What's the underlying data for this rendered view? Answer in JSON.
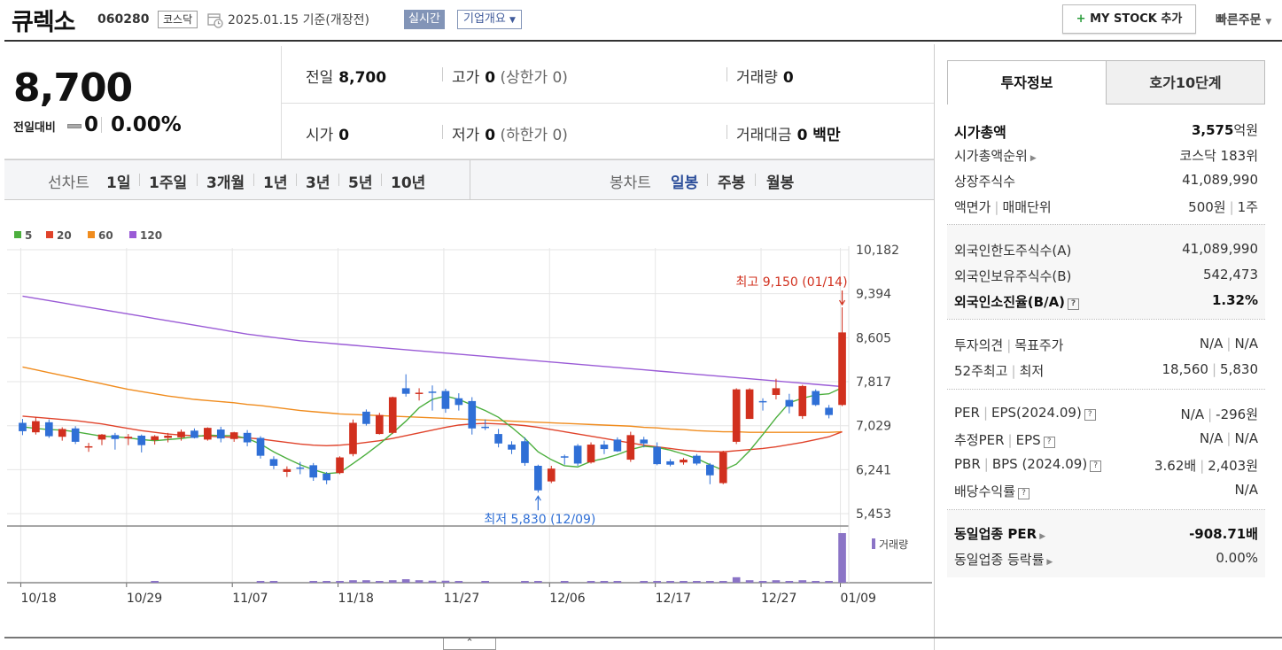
{
  "header": {
    "company": "큐렉소",
    "code": "060280",
    "market": "코스닥",
    "date_text": "2025.01.15  기준(개장전)",
    "realtime_label": "실시간",
    "corp_overview_label": "기업개요",
    "mystock_plus": "+",
    "mystock_label": "MY STOCK 추가",
    "quick_order_label": "빠른주문"
  },
  "price": {
    "current": "8,700",
    "change_label": "전일대비",
    "change_value": "0",
    "change_pct": "0.00%",
    "stats": {
      "prev_close": {
        "label": "전일",
        "value": "8,700"
      },
      "high": {
        "label": "고가",
        "value": "0",
        "sub": "(상한가 0)"
      },
      "volume": {
        "label": "거래량",
        "value": "0"
      },
      "open": {
        "label": "시가",
        "value": "0"
      },
      "low": {
        "label": "저가",
        "value": "0",
        "sub": "(하한가 0)"
      },
      "trade_amount": {
        "label": "거래대금",
        "value": "0 백만"
      }
    }
  },
  "toolbar": {
    "line_chart_label": "선차트",
    "line_periods": [
      "1일",
      "1주일",
      "3개월",
      "1년",
      "3년",
      "5년",
      "10년"
    ],
    "candle_chart_label": "봉차트",
    "candle_periods": [
      "일봉",
      "주봉",
      "월봉"
    ],
    "candle_active": "일봉"
  },
  "chart_data": {
    "type": "candlestick",
    "legend": [
      {
        "name": "5",
        "color": "#4caf3e"
      },
      {
        "name": "20",
        "color": "#e0432b"
      },
      {
        "name": "60",
        "color": "#f08c1e"
      },
      {
        "name": "120",
        "color": "#9a5bd6"
      }
    ],
    "y_ticks": [
      "10,182",
      "9,394",
      "8,605",
      "7,817",
      "7,029",
      "6,241",
      "5,453"
    ],
    "ylim": [
      5453,
      10182
    ],
    "x_ticks": [
      "10/18",
      "10/29",
      "11/07",
      "11/18",
      "11/27",
      "12/06",
      "12/17",
      "12/27",
      "01/09"
    ],
    "high_annotation": "최고 9,150 (01/14)",
    "low_annotation": "최저 5,830 (12/09)",
    "volume_label": "거래량",
    "candles": [
      {
        "o": 7080,
        "h": 7150,
        "l": 6860,
        "c": 6930
      },
      {
        "o": 6910,
        "h": 7180,
        "l": 6870,
        "c": 7110
      },
      {
        "o": 7090,
        "h": 7140,
        "l": 6810,
        "c": 6840
      },
      {
        "o": 6830,
        "h": 7000,
        "l": 6760,
        "c": 6970
      },
      {
        "o": 6980,
        "h": 7020,
        "l": 6700,
        "c": 6740
      },
      {
        "o": 6660,
        "h": 6720,
        "l": 6560,
        "c": 6660
      },
      {
        "o": 6780,
        "h": 6880,
        "l": 6680,
        "c": 6870
      },
      {
        "o": 6860,
        "h": 6900,
        "l": 6600,
        "c": 6790
      },
      {
        "o": 6800,
        "h": 6880,
        "l": 6680,
        "c": 6830
      },
      {
        "o": 6850,
        "h": 6870,
        "l": 6550,
        "c": 6680
      },
      {
        "o": 6770,
        "h": 6860,
        "l": 6690,
        "c": 6840
      },
      {
        "o": 6810,
        "h": 6900,
        "l": 6730,
        "c": 6850
      },
      {
        "o": 6820,
        "h": 6960,
        "l": 6760,
        "c": 6920
      },
      {
        "o": 6940,
        "h": 6980,
        "l": 6800,
        "c": 6810
      },
      {
        "o": 6780,
        "h": 7000,
        "l": 6760,
        "c": 6990
      },
      {
        "o": 6960,
        "h": 7010,
        "l": 6730,
        "c": 6800
      },
      {
        "o": 6790,
        "h": 6920,
        "l": 6740,
        "c": 6910
      },
      {
        "o": 6900,
        "h": 6950,
        "l": 6660,
        "c": 6730
      },
      {
        "o": 6810,
        "h": 6840,
        "l": 6440,
        "c": 6490
      },
      {
        "o": 6430,
        "h": 6480,
        "l": 6250,
        "c": 6310
      },
      {
        "o": 6200,
        "h": 6300,
        "l": 6110,
        "c": 6250
      },
      {
        "o": 6280,
        "h": 6380,
        "l": 6160,
        "c": 6260
      },
      {
        "o": 6320,
        "h": 6360,
        "l": 6040,
        "c": 6100
      },
      {
        "o": 6170,
        "h": 6200,
        "l": 5980,
        "c": 6050
      },
      {
        "o": 6180,
        "h": 6480,
        "l": 6160,
        "c": 6460
      },
      {
        "o": 6520,
        "h": 7140,
        "l": 6480,
        "c": 7080
      },
      {
        "o": 7280,
        "h": 7320,
        "l": 7030,
        "c": 7060
      },
      {
        "o": 6880,
        "h": 7260,
        "l": 6870,
        "c": 7220
      },
      {
        "o": 6900,
        "h": 7550,
        "l": 6880,
        "c": 7540
      },
      {
        "o": 7700,
        "h": 7950,
        "l": 7550,
        "c": 7600
      },
      {
        "o": 7620,
        "h": 7700,
        "l": 7480,
        "c": 7620
      },
      {
        "o": 7640,
        "h": 7750,
        "l": 7300,
        "c": 7630
      },
      {
        "o": 7650,
        "h": 7690,
        "l": 7260,
        "c": 7330
      },
      {
        "o": 7520,
        "h": 7610,
        "l": 7300,
        "c": 7400
      },
      {
        "o": 7470,
        "h": 7540,
        "l": 6870,
        "c": 6980
      },
      {
        "o": 7010,
        "h": 7140,
        "l": 6950,
        "c": 7000
      },
      {
        "o": 6880,
        "h": 6970,
        "l": 6640,
        "c": 6710
      },
      {
        "o": 6690,
        "h": 6750,
        "l": 6520,
        "c": 6600
      },
      {
        "o": 6750,
        "h": 6820,
        "l": 6310,
        "c": 6360
      },
      {
        "o": 6310,
        "h": 6330,
        "l": 5830,
        "c": 5870
      },
      {
        "o": 6030,
        "h": 6310,
        "l": 6000,
        "c": 6260
      },
      {
        "o": 6480,
        "h": 6510,
        "l": 6330,
        "c": 6460
      },
      {
        "o": 6670,
        "h": 6700,
        "l": 6310,
        "c": 6350
      },
      {
        "o": 6370,
        "h": 6730,
        "l": 6350,
        "c": 6690
      },
      {
        "o": 6690,
        "h": 6760,
        "l": 6520,
        "c": 6610
      },
      {
        "o": 6780,
        "h": 6820,
        "l": 6560,
        "c": 6570
      },
      {
        "o": 6420,
        "h": 6920,
        "l": 6380,
        "c": 6860
      },
      {
        "o": 6780,
        "h": 6830,
        "l": 6640,
        "c": 6710
      },
      {
        "o": 6650,
        "h": 6730,
        "l": 6320,
        "c": 6340
      },
      {
        "o": 6390,
        "h": 6430,
        "l": 6300,
        "c": 6330
      },
      {
        "o": 6370,
        "h": 6450,
        "l": 6330,
        "c": 6420
      },
      {
        "o": 6490,
        "h": 6520,
        "l": 6320,
        "c": 6350
      },
      {
        "o": 6330,
        "h": 6360,
        "l": 5980,
        "c": 6140
      },
      {
        "o": 6000,
        "h": 6580,
        "l": 5980,
        "c": 6550
      },
      {
        "o": 6740,
        "h": 7700,
        "l": 6700,
        "c": 7680
      },
      {
        "o": 7150,
        "h": 7700,
        "l": 7150,
        "c": 7680
      },
      {
        "o": 7470,
        "h": 7520,
        "l": 7300,
        "c": 7450
      },
      {
        "o": 7580,
        "h": 7870,
        "l": 7500,
        "c": 7700
      },
      {
        "o": 7490,
        "h": 7600,
        "l": 7250,
        "c": 7370
      },
      {
        "o": 7200,
        "h": 7760,
        "l": 7150,
        "c": 7740
      },
      {
        "o": 7650,
        "h": 7680,
        "l": 7380,
        "c": 7400
      },
      {
        "o": 7350,
        "h": 7400,
        "l": 7160,
        "c": 7220
      },
      {
        "o": 7400,
        "h": 9150,
        "l": 7380,
        "c": 8700
      }
    ],
    "ma5": [
      7010,
      6980,
      6960,
      6950,
      6920,
      6880,
      6840,
      6830,
      6810,
      6780,
      6760,
      6780,
      6800,
      6830,
      6860,
      6850,
      6850,
      6800,
      6700,
      6560,
      6440,
      6330,
      6240,
      6170,
      6190,
      6350,
      6520,
      6700,
      6900,
      7110,
      7350,
      7500,
      7560,
      7500,
      7400,
      7300,
      7180,
      7000,
      6800,
      6560,
      6420,
      6310,
      6290,
      6390,
      6440,
      6510,
      6600,
      6660,
      6640,
      6590,
      6520,
      6440,
      6330,
      6230,
      6340,
      6580,
      6870,
      7170,
      7440,
      7520,
      7580,
      7600,
      7710
    ],
    "ma20": [
      7200,
      7180,
      7160,
      7140,
      7120,
      7090,
      7060,
      7020,
      6980,
      6940,
      6910,
      6880,
      6860,
      6850,
      6840,
      6830,
      6820,
      6810,
      6790,
      6760,
      6730,
      6700,
      6680,
      6670,
      6680,
      6700,
      6730,
      6760,
      6800,
      6850,
      6900,
      6950,
      7000,
      7040,
      7060,
      7070,
      7060,
      7050,
      7030,
      7000,
      6960,
      6920,
      6880,
      6840,
      6800,
      6760,
      6720,
      6680,
      6650,
      6620,
      6590,
      6570,
      6560,
      6560,
      6580,
      6600,
      6620,
      6650,
      6690,
      6730,
      6780,
      6830,
      6920
    ],
    "ma60": [
      8080,
      8030,
      7980,
      7930,
      7880,
      7830,
      7780,
      7730,
      7680,
      7640,
      7600,
      7560,
      7530,
      7500,
      7480,
      7460,
      7440,
      7410,
      7390,
      7360,
      7330,
      7300,
      7280,
      7260,
      7240,
      7230,
      7220,
      7210,
      7200,
      7190,
      7180,
      7170,
      7160,
      7150,
      7140,
      7130,
      7120,
      7110,
      7100,
      7090,
      7080,
      7070,
      7060,
      7050,
      7040,
      7030,
      7020,
      7000,
      6990,
      6970,
      6960,
      6940,
      6930,
      6920,
      6920,
      6910,
      6910,
      6910,
      6910,
      6910,
      6910,
      6910,
      6920
    ],
    "ma120": [
      9350,
      9310,
      9270,
      9230,
      9190,
      9150,
      9110,
      9070,
      9030,
      8990,
      8950,
      8910,
      8870,
      8830,
      8790,
      8750,
      8710,
      8670,
      8640,
      8610,
      8580,
      8550,
      8530,
      8510,
      8490,
      8470,
      8450,
      8430,
      8410,
      8390,
      8370,
      8350,
      8330,
      8310,
      8290,
      8270,
      8250,
      8230,
      8210,
      8190,
      8170,
      8150,
      8130,
      8110,
      8090,
      8070,
      8050,
      8030,
      8010,
      7990,
      7970,
      7950,
      7930,
      7910,
      7890,
      7870,
      7850,
      7830,
      7810,
      7790,
      7770,
      7750,
      7730
    ],
    "volume": [
      0,
      0,
      0,
      0,
      0,
      0,
      0,
      0,
      0,
      0,
      0.02,
      0,
      0,
      0,
      0,
      0,
      0,
      0,
      0.03,
      0.03,
      0,
      0,
      0.03,
      0.03,
      0.03,
      0.05,
      0.05,
      0.03,
      0.05,
      0.07,
      0.05,
      0.04,
      0.04,
      0.03,
      0,
      0.03,
      0,
      0,
      0.03,
      0.03,
      0,
      0.03,
      0,
      0.02,
      0.02,
      0.02,
      0,
      0.02,
      0.02,
      0.03,
      0.02,
      0.02,
      0.02,
      0.03,
      0.11,
      0.05,
      0.03,
      0.05,
      0.03,
      0.05,
      0.03,
      0.02,
      1.0
    ]
  },
  "info": {
    "tab_active": "투자정보",
    "tab_inactive": "호가10단계",
    "sec1": [
      {
        "label": "시가총액",
        "value_strong": "3,575",
        "value_unit": "억원"
      },
      {
        "label": "시가총액순위",
        "value": "코스닥 183위"
      },
      {
        "label": "상장주식수",
        "value": "41,089,990"
      },
      {
        "label": "액면가",
        "label2": "매매단위",
        "value": "500원",
        "value2": "1주"
      }
    ],
    "sec2": [
      {
        "label": "외국인한도주식수(A)",
        "value": "41,089,990"
      },
      {
        "label": "외국인보유주식수(B)",
        "value": "542,473"
      },
      {
        "label": "외국인소진율(B/A)",
        "value": "1.32%"
      }
    ],
    "sec3": [
      {
        "label": "투자의견",
        "label2": "목표주가",
        "value": "N/A",
        "value2": "N/A"
      },
      {
        "label": "52주최고",
        "label2": "최저",
        "value": "18,560",
        "value2": "5,830"
      }
    ],
    "sec4": [
      {
        "label": "PER",
        "label2": "EPS(2024.09)",
        "value": "N/A",
        "value2": "-296원"
      },
      {
        "label": "추정PER",
        "label2": "EPS",
        "value": "N/A",
        "value2": "N/A"
      },
      {
        "label": "PBR",
        "label2": "BPS (2024.09)",
        "value": "3.62배",
        "value2": "2,403원"
      },
      {
        "label": "배당수익률",
        "value": "N/A"
      }
    ],
    "sec5": [
      {
        "label": "동일업종 PER",
        "value": "-908.71배"
      },
      {
        "label": "동일업종 등락률",
        "value": "0.00%"
      }
    ],
    "qmark": "?"
  },
  "collapse_glyph": "⌃"
}
